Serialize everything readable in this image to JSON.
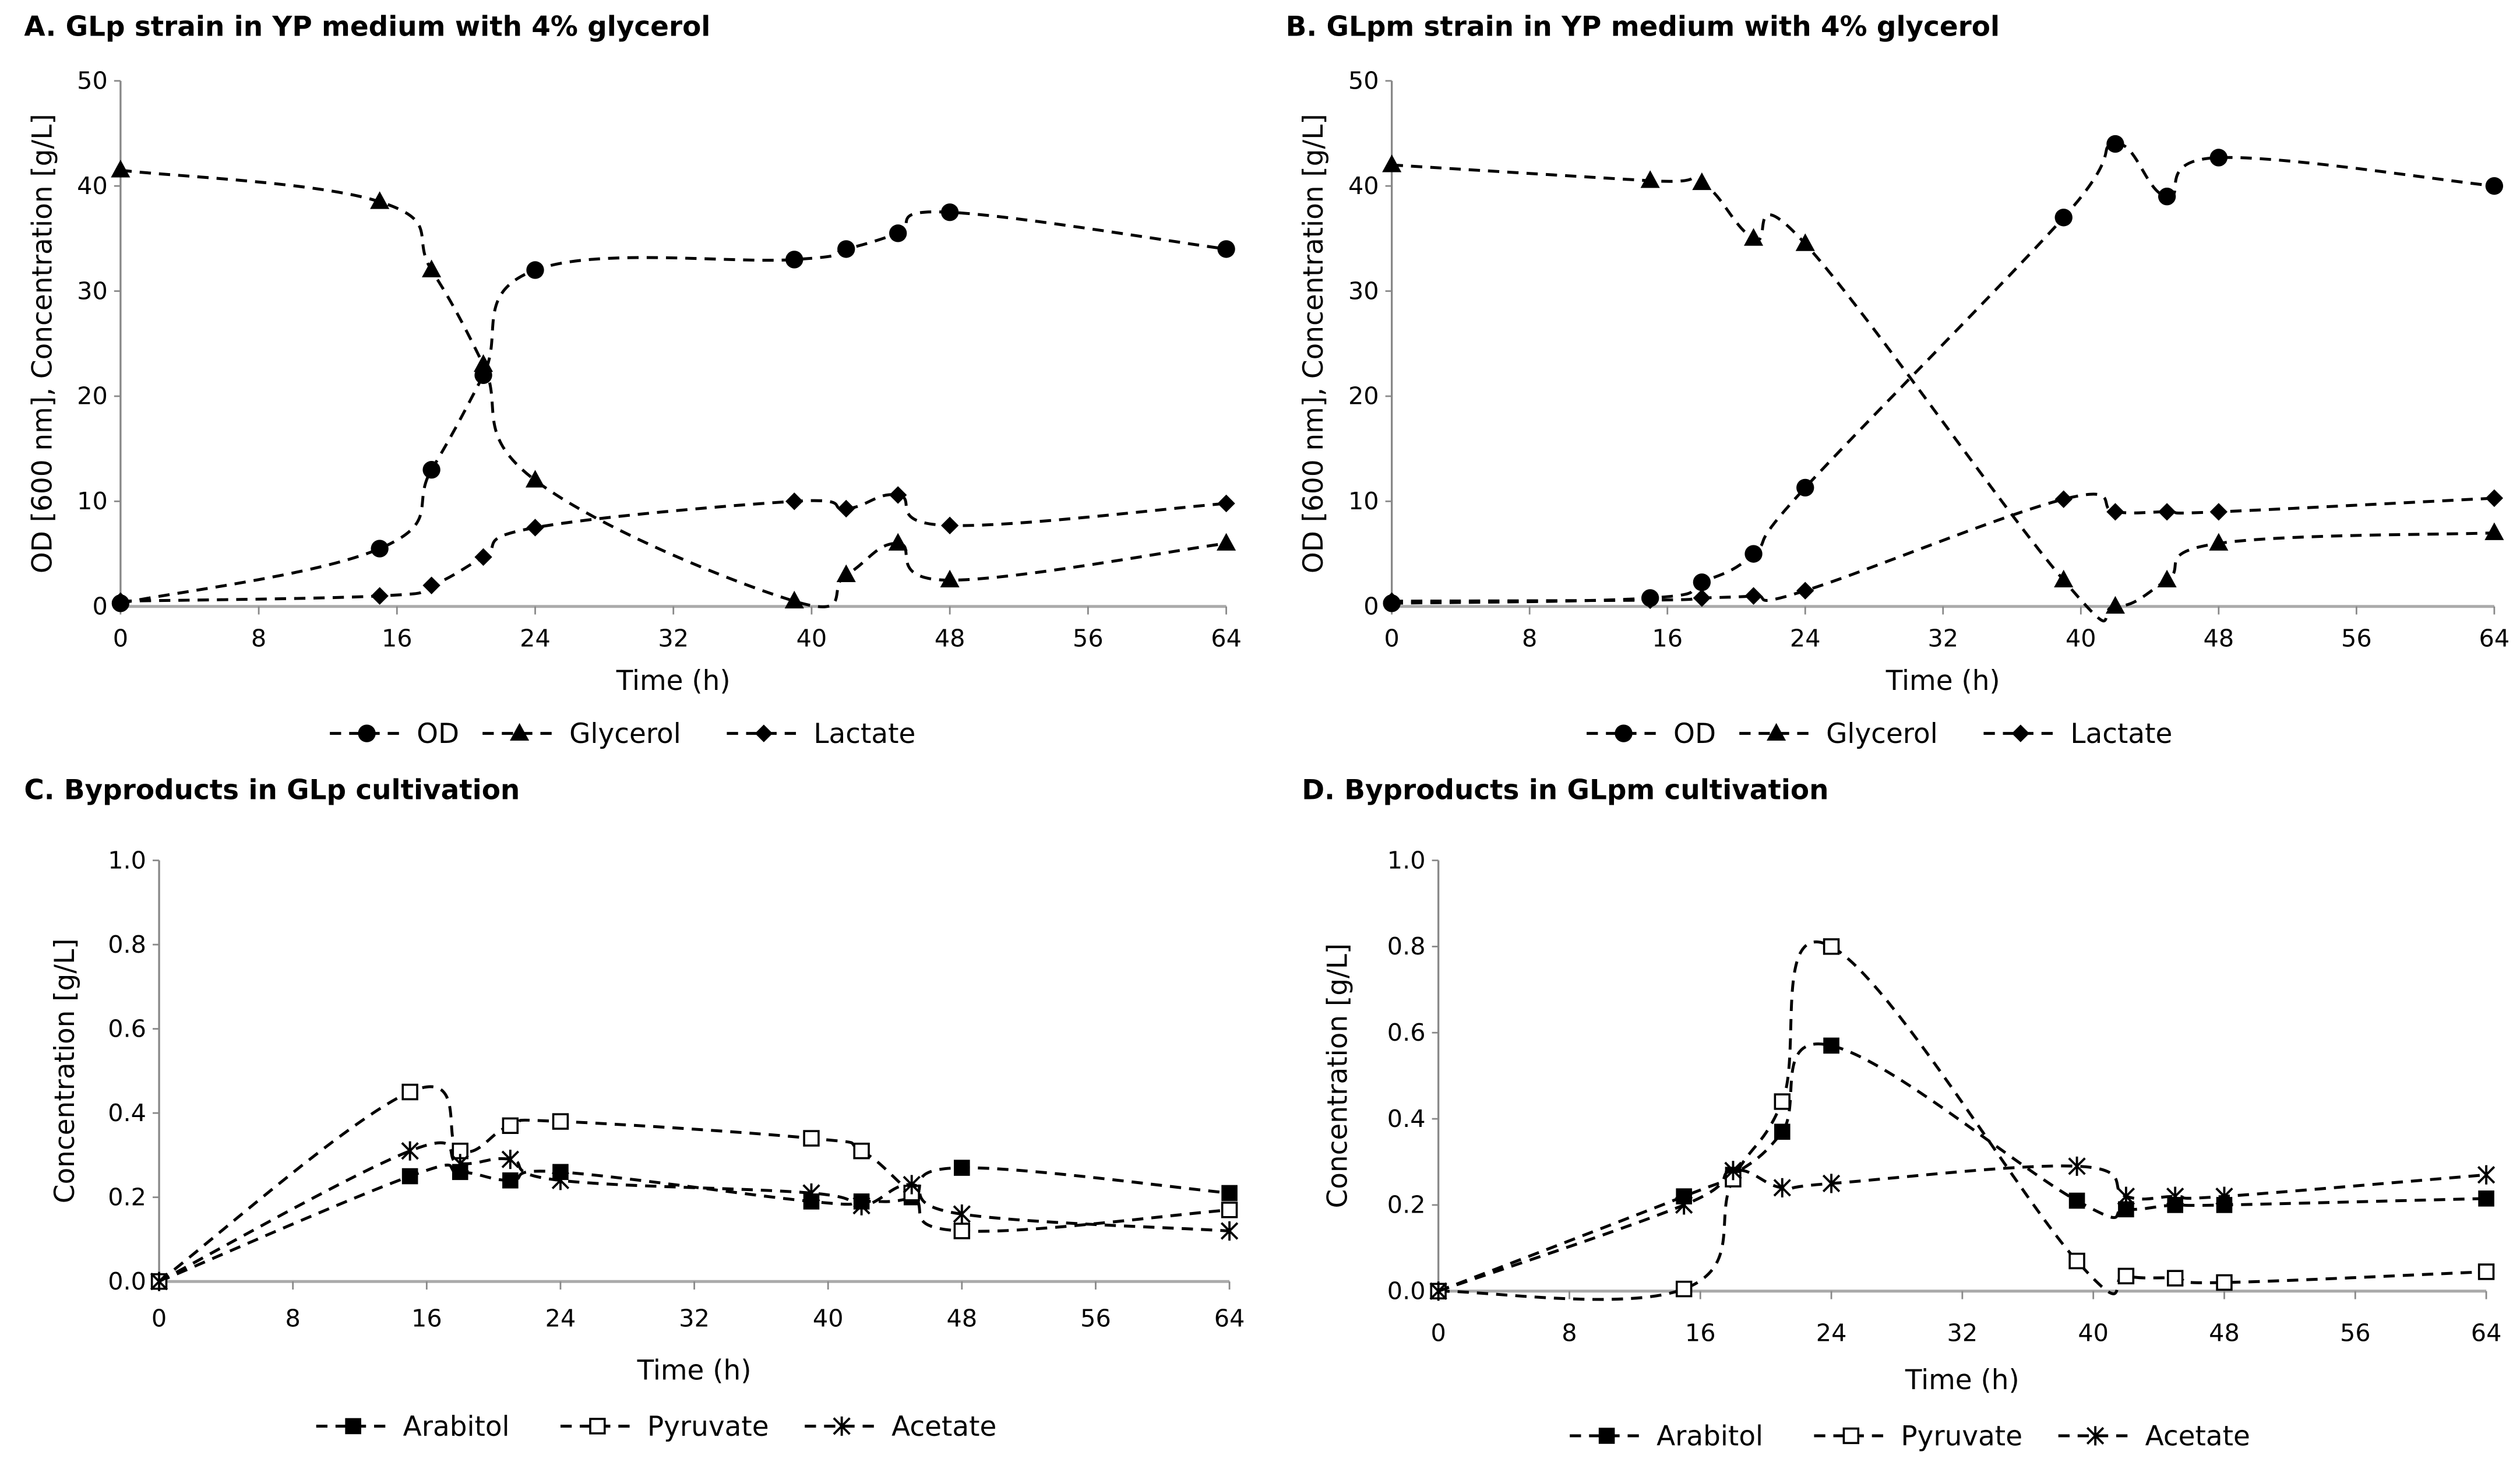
{
  "chart_data": [
    {
      "type": "line",
      "title": "A. GLp strain in YP medium with 4% glycerol",
      "xlabel": "Time (h)",
      "ylabel": "OD [600 nm], Concentration [g/L]",
      "xlim": [
        0,
        64
      ],
      "ylim": [
        0,
        50
      ],
      "xticks": [
        "0",
        "8",
        "16",
        "24",
        "32",
        "40",
        "48",
        "56",
        "64"
      ],
      "yticks": [
        "0",
        "10",
        "20",
        "30",
        "40",
        "50"
      ],
      "legend_position": "bottom",
      "x": [
        0,
        15,
        18,
        21,
        24,
        39,
        42,
        45,
        48,
        64
      ],
      "series": [
        {
          "name": "OD",
          "marker": "circle",
          "values": [
            0.3,
            5.5,
            13,
            22,
            32,
            33,
            34,
            35.5,
            37.5,
            34
          ]
        },
        {
          "name": "Glycerol",
          "marker": "triangle",
          "values": [
            41.5,
            38.5,
            32,
            23,
            12,
            0.5,
            3,
            6,
            2.5,
            6
          ]
        },
        {
          "name": "Lactate",
          "marker": "diamond",
          "values": [
            0.5,
            1,
            2,
            4.7,
            7.5,
            10,
            9.3,
            10.6,
            7.7,
            9.8
          ]
        }
      ]
    },
    {
      "type": "line",
      "title": "B. GLpm strain in YP medium with 4% glycerol",
      "xlabel": "Time (h)",
      "ylabel": "OD [600 nm], Concentration [g/L]",
      "xlim": [
        0,
        64
      ],
      "ylim": [
        0,
        50
      ],
      "xticks": [
        "0",
        "8",
        "16",
        "24",
        "32",
        "40",
        "48",
        "56",
        "64"
      ],
      "yticks": [
        "0",
        "10",
        "20",
        "30",
        "40",
        "50"
      ],
      "legend_position": "bottom",
      "x": [
        0,
        15,
        18,
        21,
        24,
        39,
        42,
        45,
        48,
        64
      ],
      "series": [
        {
          "name": "OD",
          "marker": "circle",
          "values": [
            0.3,
            0.8,
            2.3,
            5,
            11.3,
            37,
            44,
            39,
            42.7,
            40
          ]
        },
        {
          "name": "Glycerol",
          "marker": "triangle",
          "values": [
            42,
            40.5,
            40.3,
            35,
            34.5,
            2.5,
            0,
            2.5,
            6,
            7
          ]
        },
        {
          "name": "Lactate",
          "marker": "diamond",
          "values": [
            0.5,
            0.6,
            0.8,
            1,
            1.5,
            10.2,
            9,
            9,
            9,
            10.3
          ]
        }
      ]
    },
    {
      "type": "line",
      "title": "C. Byproducts in GLp cultivation",
      "xlabel": "Time (h)",
      "ylabel": "Concentration [g/L]",
      "xlim": [
        0,
        64
      ],
      "ylim": [
        0,
        1
      ],
      "xticks": [
        "0",
        "8",
        "16",
        "24",
        "32",
        "40",
        "48",
        "56",
        "64"
      ],
      "yticks": [
        "0.0",
        "0.2",
        "0.4",
        "0.6",
        "0.8",
        "1.0"
      ],
      "legend_position": "bottom",
      "x": [
        0,
        15,
        18,
        21,
        24,
        39,
        42,
        45,
        48,
        64
      ],
      "series": [
        {
          "name": "Arabitol",
          "marker": "filled-square",
          "values": [
            0,
            0.25,
            0.26,
            0.24,
            0.26,
            0.19,
            0.19,
            0.2,
            0.27,
            0.21
          ]
        },
        {
          "name": "Pyruvate",
          "marker": "open-square",
          "values": [
            0,
            0.45,
            0.31,
            0.37,
            0.38,
            0.34,
            0.31,
            0.21,
            0.12,
            0.17
          ]
        },
        {
          "name": "Acetate",
          "marker": "asterisk",
          "values": [
            0,
            0.31,
            0.28,
            0.29,
            0.24,
            0.21,
            0.18,
            0.23,
            0.16,
            0.12
          ]
        }
      ]
    },
    {
      "type": "line",
      "title": "D. Byproducts in GLpm cultivation",
      "xlabel": "Time (h)",
      "ylabel": "Concentration [g/L]",
      "xlim": [
        0,
        64
      ],
      "ylim": [
        0,
        1
      ],
      "xticks": [
        "0",
        "8",
        "16",
        "24",
        "32",
        "40",
        "48",
        "56",
        "64"
      ],
      "yticks": [
        "0.0",
        "0.2",
        "0.4",
        "0.6",
        "0.8",
        "1.0"
      ],
      "legend_position": "bottom",
      "x": [
        0,
        15,
        18,
        21,
        24,
        39,
        42,
        45,
        48,
        64
      ],
      "series": [
        {
          "name": "Arabitol",
          "marker": "filled-square",
          "values": [
            0,
            0.22,
            0.27,
            0.37,
            0.57,
            0.21,
            0.19,
            0.2,
            0.2,
            0.215
          ]
        },
        {
          "name": "Pyruvate",
          "marker": "open-square",
          "values": [
            0,
            0.005,
            0.26,
            0.44,
            0.8,
            0.07,
            0.035,
            0.03,
            0.02,
            0.045
          ]
        },
        {
          "name": "Acetate",
          "marker": "asterisk",
          "values": [
            0,
            0.2,
            0.28,
            0.24,
            0.25,
            0.29,
            0.22,
            0.22,
            0.22,
            0.27
          ]
        }
      ]
    }
  ]
}
